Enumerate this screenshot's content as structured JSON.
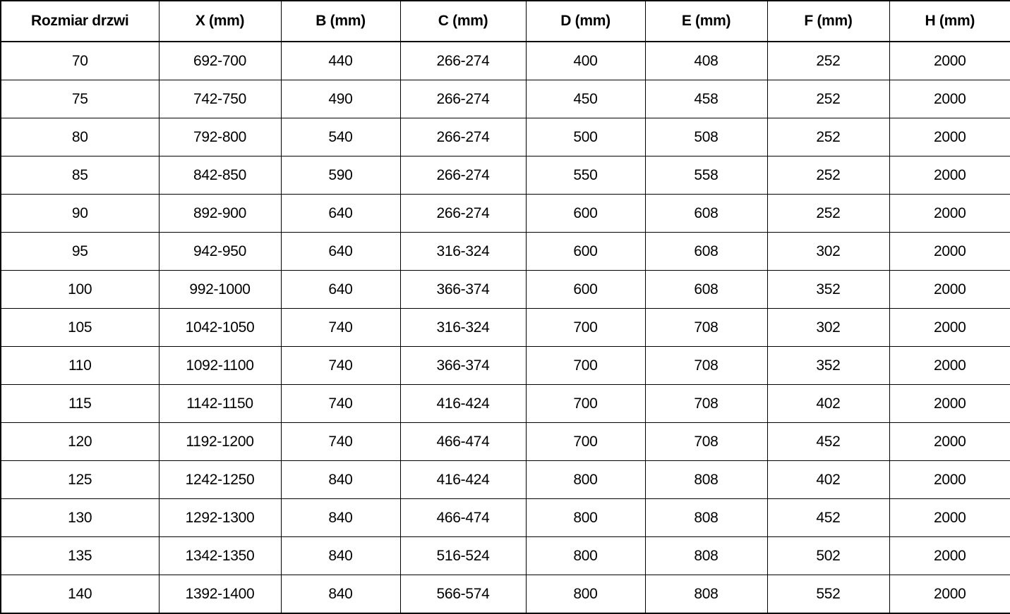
{
  "table": {
    "columns": [
      "Rozmiar drzwi",
      "X (mm)",
      "B (mm)",
      "C (mm)",
      "D (mm)",
      "E (mm)",
      "F (mm)",
      "H (mm)"
    ],
    "rows": [
      [
        "70",
        "692-700",
        "440",
        "266-274",
        "400",
        "408",
        "252",
        "2000"
      ],
      [
        "75",
        "742-750",
        "490",
        "266-274",
        "450",
        "458",
        "252",
        "2000"
      ],
      [
        "80",
        "792-800",
        "540",
        "266-274",
        "500",
        "508",
        "252",
        "2000"
      ],
      [
        "85",
        "842-850",
        "590",
        "266-274",
        "550",
        "558",
        "252",
        "2000"
      ],
      [
        "90",
        "892-900",
        "640",
        "266-274",
        "600",
        "608",
        "252",
        "2000"
      ],
      [
        "95",
        "942-950",
        "640",
        "316-324",
        "600",
        "608",
        "302",
        "2000"
      ],
      [
        "100",
        "992-1000",
        "640",
        "366-374",
        "600",
        "608",
        "352",
        "2000"
      ],
      [
        "105",
        "1042-1050",
        "740",
        "316-324",
        "700",
        "708",
        "302",
        "2000"
      ],
      [
        "110",
        "1092-1100",
        "740",
        "366-374",
        "700",
        "708",
        "352",
        "2000"
      ],
      [
        "115",
        "1142-1150",
        "740",
        "416-424",
        "700",
        "708",
        "402",
        "2000"
      ],
      [
        "120",
        "1192-1200",
        "740",
        "466-474",
        "700",
        "708",
        "452",
        "2000"
      ],
      [
        "125",
        "1242-1250",
        "840",
        "416-424",
        "800",
        "808",
        "402",
        "2000"
      ],
      [
        "130",
        "1292-1300",
        "840",
        "466-474",
        "800",
        "808",
        "452",
        "2000"
      ],
      [
        "135",
        "1342-1350",
        "840",
        "516-524",
        "800",
        "808",
        "502",
        "2000"
      ],
      [
        "140",
        "1392-1400",
        "840",
        "566-574",
        "800",
        "808",
        "552",
        "2000"
      ]
    ],
    "border_color": "#000000",
    "text_color": "#000000",
    "background_color": "#ffffff"
  }
}
